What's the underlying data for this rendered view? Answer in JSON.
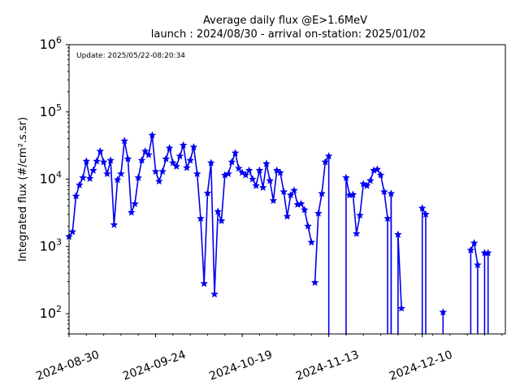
{
  "chart_data": {
    "type": "line",
    "title": "Average daily flux @E>1.6MeV",
    "subtitle": "launch : 2024/08/30 - arrival on-station: 2025/01/02",
    "annotation": "Update: 2025/05/22-08:20:34",
    "ylabel": "Integrated flux (#/cm².s.sr)",
    "y_scale": "log",
    "ylim": [
      50,
      1000000
    ],
    "xlim": [
      "2024-08-30",
      "2025-01-03"
    ],
    "x_ticks": [
      "2024-08-30",
      "2024-09-24",
      "2024-10-19",
      "2024-11-13",
      "2024-12-10"
    ],
    "y_ticks": [
      {
        "base": "10",
        "exp": "2",
        "value": 100
      },
      {
        "base": "10",
        "exp": "3",
        "value": 1000
      },
      {
        "base": "10",
        "exp": "4",
        "value": 10000
      },
      {
        "base": "10",
        "exp": "5",
        "value": 100000
      },
      {
        "base": "10",
        "exp": "6",
        "value": 1000000
      }
    ],
    "grid": false,
    "series_color": "#0000ee",
    "marker": "star",
    "segments": [
      {
        "x": [
          "2024-08-30",
          "2024-08-31",
          "2024-09-01",
          "2024-09-02",
          "2024-09-03",
          "2024-09-04",
          "2024-09-05",
          "2024-09-06",
          "2024-09-07",
          "2024-09-08",
          "2024-09-09",
          "2024-09-10",
          "2024-09-11",
          "2024-09-12",
          "2024-09-13",
          "2024-09-14",
          "2024-09-15",
          "2024-09-16",
          "2024-09-17",
          "2024-09-18",
          "2024-09-19",
          "2024-09-20",
          "2024-09-21",
          "2024-09-22",
          "2024-09-23",
          "2024-09-24",
          "2024-09-25",
          "2024-09-26",
          "2024-09-27",
          "2024-09-28",
          "2024-09-29",
          "2024-09-30",
          "2024-10-01",
          "2024-10-02",
          "2024-10-03",
          "2024-10-04",
          "2024-10-05",
          "2024-10-06",
          "2024-10-07",
          "2024-10-08",
          "2024-10-09",
          "2024-10-10",
          "2024-10-11",
          "2024-10-12",
          "2024-10-13",
          "2024-10-14",
          "2024-10-15",
          "2024-10-16",
          "2024-10-17",
          "2024-10-18",
          "2024-10-19",
          "2024-10-20",
          "2024-10-21",
          "2024-10-22",
          "2024-10-23",
          "2024-10-24",
          "2024-10-25",
          "2024-10-26",
          "2024-10-27",
          "2024-10-28",
          "2024-10-29",
          "2024-10-30",
          "2024-10-31",
          "2024-11-01",
          "2024-11-02",
          "2024-11-03",
          "2024-11-04",
          "2024-11-05",
          "2024-11-06",
          "2024-11-07",
          "2024-11-08"
        ],
        "y": [
          1400,
          1650,
          5600,
          8200,
          10500,
          18500,
          10200,
          13500,
          18500,
          26000,
          18000,
          12000,
          19000,
          2100,
          9800,
          12000,
          37000,
          20000,
          3200,
          4300,
          10500,
          19000,
          26000,
          23000,
          45000,
          13000,
          9300,
          13000,
          20000,
          29000,
          17500,
          15500,
          22000,
          32000,
          14800,
          19000,
          30000,
          12000,
          2600,
          280,
          6200,
          17500,
          195,
          3300,
          2400,
          11500,
          12000,
          18000,
          24500,
          14500,
          12500,
          11500,
          13500,
          10000,
          8000,
          13500,
          7500,
          17000,
          9500,
          4800,
          13500,
          12500,
          6500,
          2800,
          5800,
          6800,
          4200,
          4300,
          3500,
          2000,
          1150
        ],
        "marker_count": 71
      },
      {
        "x": [
          "2024-11-09",
          "2024-11-10",
          "2024-11-11",
          "2024-11-12",
          "2024-11-13"
        ],
        "y": [
          290,
          3100,
          6100,
          18000,
          22000
        ],
        "drop_after": true
      },
      {
        "x": [
          "2024-11-18",
          "2024-11-19",
          "2024-11-20",
          "2024-11-21",
          "2024-11-22",
          "2024-11-23",
          "2024-11-24",
          "2024-11-25",
          "2024-11-26",
          "2024-11-27",
          "2024-11-28",
          "2024-11-29",
          "2024-11-30"
        ],
        "y": [
          10500,
          5800,
          5900,
          1550,
          2900,
          8500,
          8000,
          9500,
          13500,
          14000,
          11500,
          6500,
          2600
        ],
        "drop_before": true,
        "drop_after": true
      },
      {
        "x": [
          "2024-12-01"
        ],
        "y": [
          6100
        ],
        "drop_before": true,
        "drop_after": true
      },
      {
        "x": [
          "2024-12-03",
          "2024-12-04"
        ],
        "y": [
          1500,
          120
        ],
        "drop_before": true
      },
      {
        "x": [
          "2024-12-10",
          "2024-12-11"
        ],
        "y": [
          3700,
          3000
        ],
        "drop_before": true,
        "drop_after": true
      },
      {
        "x": [
          "2024-12-16"
        ],
        "y": [
          105
        ],
        "drop_before": true
      },
      {
        "x": [
          "2024-12-24",
          "2024-12-25",
          "2024-12-26"
        ],
        "y": [
          880,
          1120,
          530
        ],
        "drop_before": true,
        "drop_after": true
      },
      {
        "x": [
          "2024-12-28",
          "2024-12-29"
        ],
        "y": [
          800,
          800
        ],
        "drop_before": true,
        "drop_after": true
      }
    ]
  }
}
